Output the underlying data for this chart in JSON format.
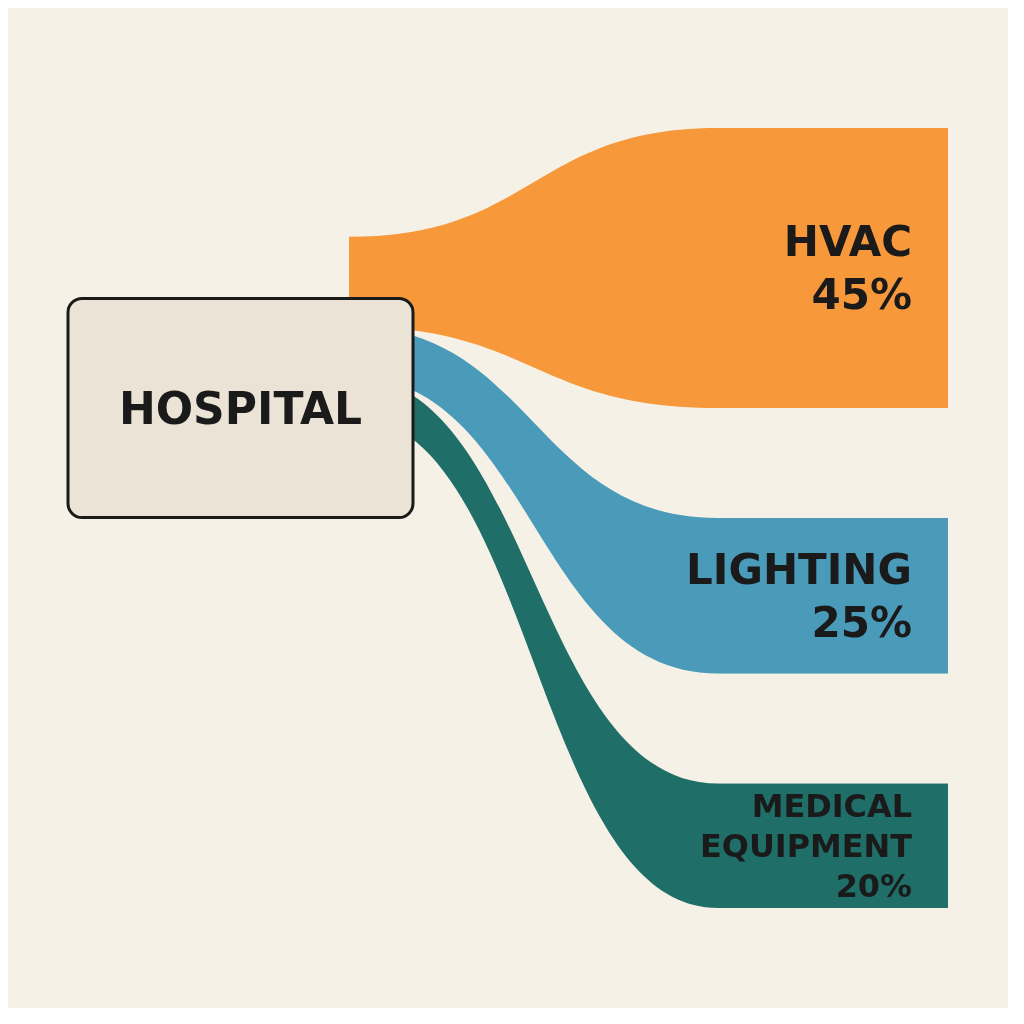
{
  "chart_data": {
    "type": "other",
    "annotations": [
      "HOSPITAL"
    ],
    "categories": [
      "HVAC",
      "LIGHTING",
      "MEDICAL EQUIPMENT"
    ],
    "values": [
      45,
      25,
      20
    ],
    "value_labels": [
      "45%",
      "25%",
      "20%"
    ],
    "colors": [
      "#f7993a",
      "#4a9aba",
      "#1f6e68"
    ]
  }
}
